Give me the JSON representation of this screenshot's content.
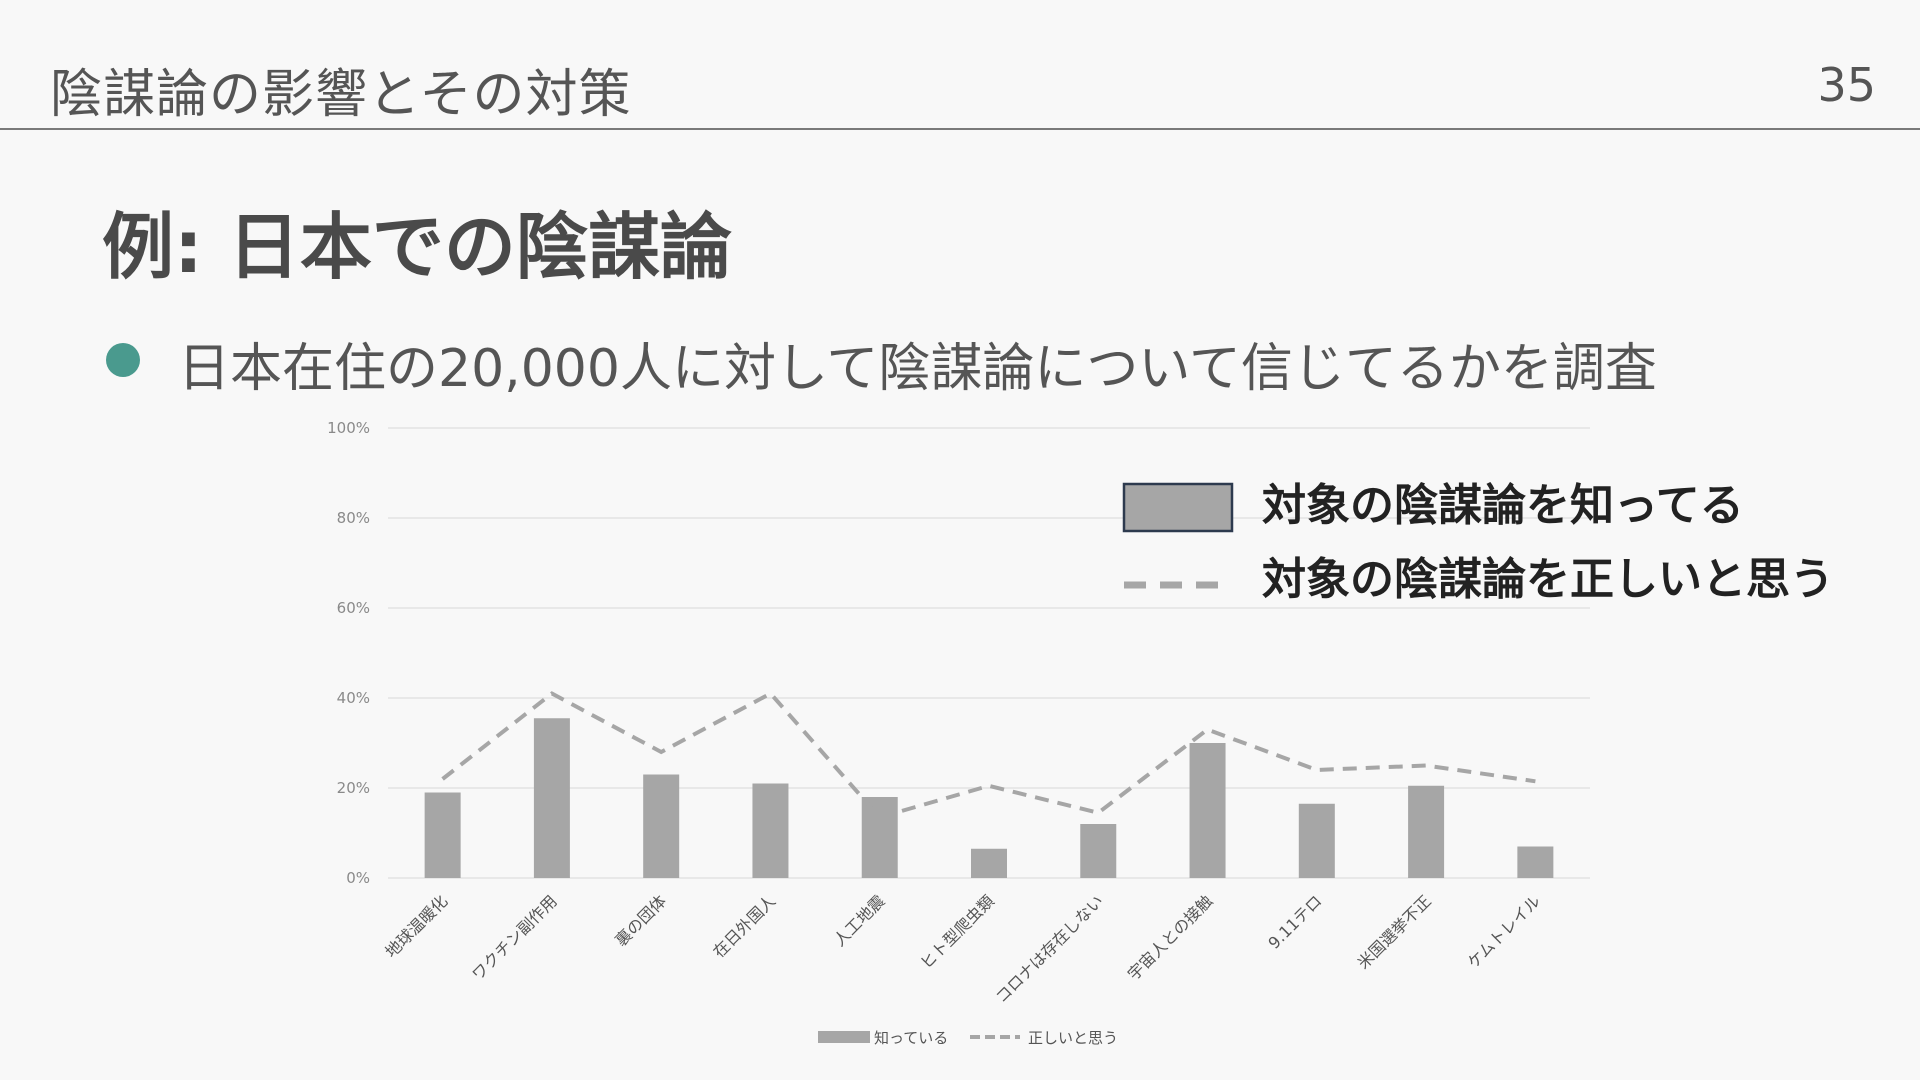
{
  "header": {
    "title": "陰謀論の影響とその対策",
    "page_number": "35"
  },
  "slide": {
    "title": "例: 日本での陰謀論",
    "bullet": "日本在住の20,000人に対して陰謀論について信じてるかを調査"
  },
  "colors": {
    "accent": "#4a9a8e",
    "bar": "#a6a6a6",
    "line": "#a6a6a6",
    "grid": "#e3e3e3"
  },
  "chart_data": {
    "type": "bar",
    "title": "",
    "xlabel": "",
    "ylabel": "",
    "ylim": [
      0,
      100
    ],
    "yticks": [
      "0%",
      "20%",
      "40%",
      "60%",
      "80%",
      "100%"
    ],
    "grid": true,
    "categories": [
      "地球温暖化",
      "ワクチン副作用",
      "裏の団体",
      "在日外国人",
      "人工地震",
      "ヒト型爬虫類",
      "コロナは存在しない",
      "宇宙人との接触",
      "9.11テロ",
      "米国選挙不正",
      "ケムトレイル"
    ],
    "series": [
      {
        "name": "知っている",
        "type": "bar",
        "values": [
          19,
          35.5,
          23,
          21,
          18,
          6.5,
          12,
          30,
          16.5,
          20.5,
          7
        ]
      },
      {
        "name": "正しいと思う",
        "type": "line",
        "style": "dashed",
        "values": [
          22,
          41,
          28,
          41,
          13.5,
          20.5,
          14.5,
          33,
          24,
          25,
          21.5
        ]
      }
    ],
    "legend_bottom": [
      "知っている",
      "正しいと思う"
    ],
    "legend_callout": [
      "対象の陰謀論を知ってる",
      "対象の陰謀論を正しいと思う"
    ]
  }
}
